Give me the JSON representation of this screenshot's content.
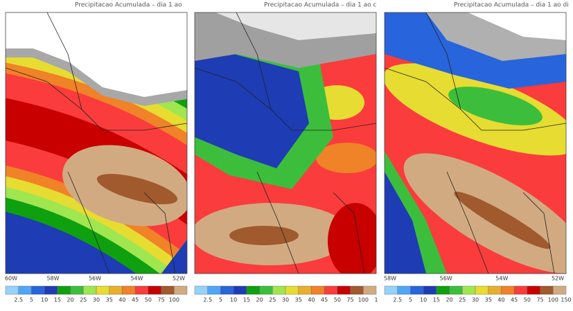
{
  "panels": [
    {
      "title": "Precipitacao Acumulada – dia 1 ao",
      "lon_labels": [
        "60W",
        "58W",
        "56W",
        "54W",
        "52W"
      ],
      "colorbar_labels": [
        "2.5",
        "5",
        "10",
        "15",
        "20",
        "25",
        "30",
        "35",
        "40",
        "45",
        "50",
        "75",
        "100"
      ]
    },
    {
      "title": "Precipitacao Acumulada – dia 1 ao c",
      "colorbar_labels": [
        "2.5",
        "5",
        "10",
        "15",
        "20",
        "25",
        "30",
        "35",
        "40",
        "45",
        "50",
        "75",
        "100",
        "1"
      ]
    },
    {
      "title": "Precipitacao Acumulada – dia 1 ao di",
      "lon_labels": [
        "58W",
        "56W",
        "54W",
        "52W"
      ],
      "colorbar_labels": [
        "2.5",
        "5",
        "10",
        "15",
        "20",
        "25",
        "30",
        "35",
        "40",
        "45",
        "50",
        "75",
        "100",
        "150"
      ]
    }
  ],
  "colorbar_colors": [
    "#96d2fa",
    "#50a5f5",
    "#2864dc",
    "#1e3cb4",
    "#0fa00f",
    "#3cbe3c",
    "#a0e650",
    "#e6dc32",
    "#e6af2d",
    "#f08228",
    "#fa3c3c",
    "#c80000",
    "#a05a2d",
    "#d2aa82"
  ]
}
